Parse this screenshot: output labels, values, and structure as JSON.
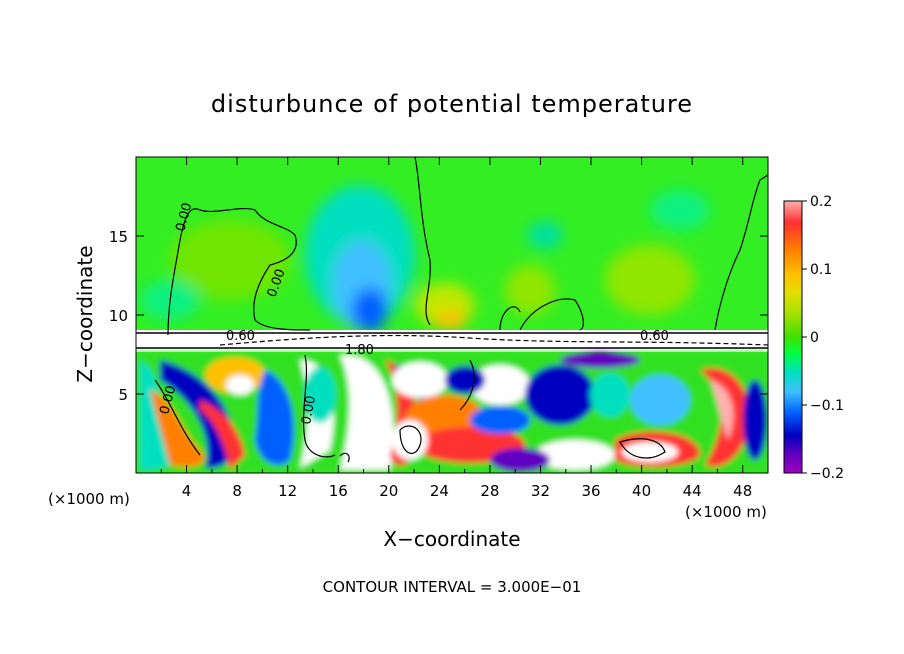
{
  "chart_data": {
    "type": "heatmap",
    "title": "disturbunce of potential temperature",
    "xlabel": "X−coordinate",
    "ylabel": "Z−coordinate",
    "x_unit_left": "(×1000 m)",
    "x_unit_right": "(×1000 m)",
    "footer": "CONTOUR INTERVAL = 3.000E−01",
    "xlim": [
      0,
      50
    ],
    "ylim": [
      0,
      20
    ],
    "xticks": [
      4,
      8,
      12,
      16,
      20,
      24,
      28,
      32,
      36,
      40,
      44,
      48
    ],
    "yticks": [
      5,
      10,
      15
    ],
    "colorbar": {
      "range": [
        -0.2,
        0.2
      ],
      "ticks": [
        0.2,
        0.1,
        0,
        -0.1,
        -0.2
      ],
      "tick_labels": [
        "0.2",
        "0.1",
        "0",
        "−0.1",
        "−0.2"
      ],
      "colors": [
        "#ffb0b0",
        "#ff3030",
        "#ff8000",
        "#ffc000",
        "#e0e000",
        "#a0e000",
        "#40e000",
        "#00ff40",
        "#00e0c0",
        "#40c0ff",
        "#0060ff",
        "#0000c0",
        "#6000c0",
        "#a000c0"
      ]
    },
    "contour_labels": [
      {
        "text": "0.00",
        "x": 4.2,
        "z": 16.2
      },
      {
        "text": "0.00",
        "x": 11.3,
        "z": 11.6
      },
      {
        "text": "0.60",
        "x": 8.5,
        "z": 8.6
      },
      {
        "text": "1.80",
        "x": 18.5,
        "z": 8.1
      },
      {
        "text": "0.60",
        "x": 41.5,
        "z": 8.6
      },
      {
        "text": "0.00",
        "x": 2.7,
        "z": 4.4
      },
      {
        "text": "0.00",
        "x": 13.6,
        "z": 4.0
      }
    ]
  }
}
